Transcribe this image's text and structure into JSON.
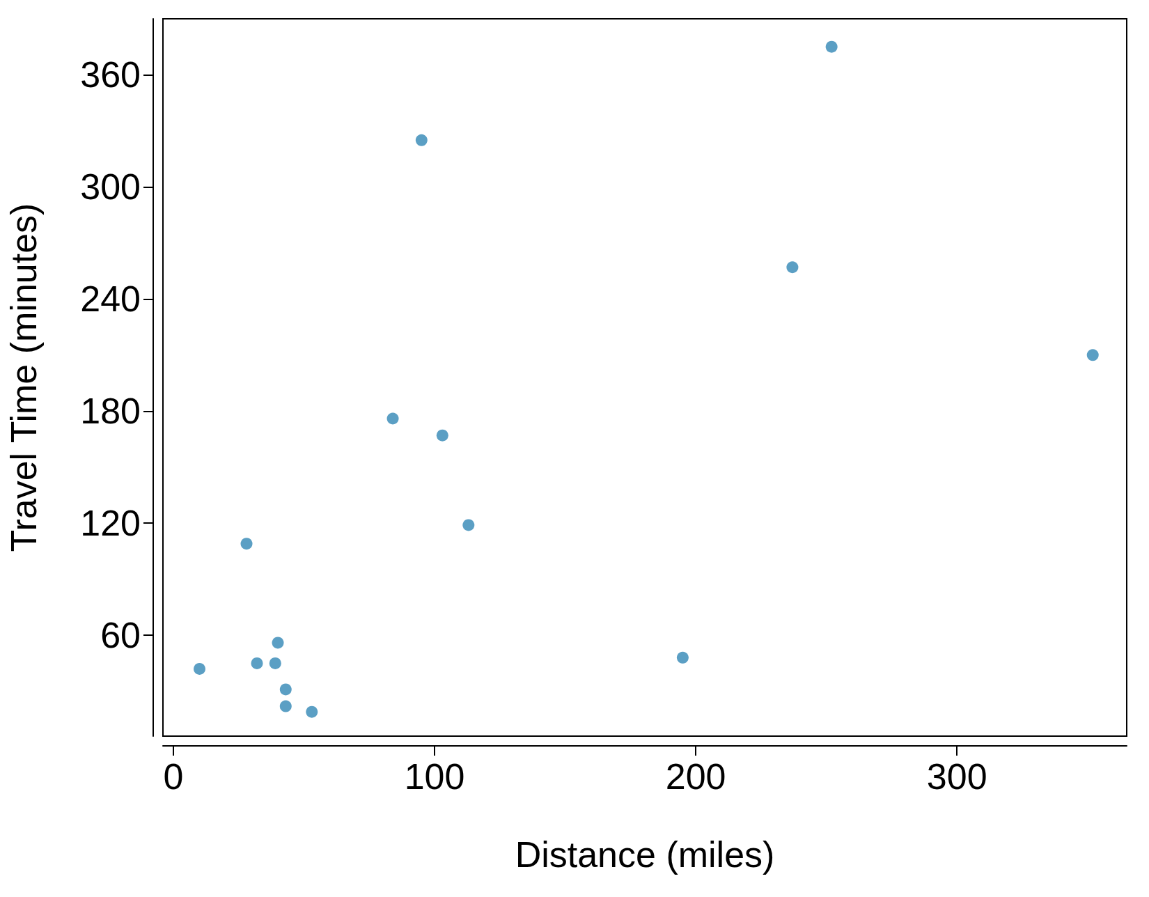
{
  "chart_data": {
    "type": "scatter",
    "xlabel": "Distance (miles)",
    "ylabel": "Travel Time (minutes)",
    "x": [
      10,
      28,
      32,
      39,
      40,
      43,
      43,
      53,
      84,
      95,
      103,
      113,
      195,
      237,
      252,
      352
    ],
    "values": [
      42,
      109,
      45,
      45,
      56,
      31,
      22,
      19,
      176,
      325,
      167,
      119,
      48,
      257,
      375,
      210
    ],
    "color": "#5b9fc4",
    "marker": "circle",
    "xlim": [
      -4,
      365
    ],
    "xticks": [
      0,
      100,
      200,
      300
    ],
    "ylim": [
      6,
      390
    ],
    "yticks": [
      60,
      120,
      180,
      240,
      300,
      360
    ],
    "grid": false
  }
}
